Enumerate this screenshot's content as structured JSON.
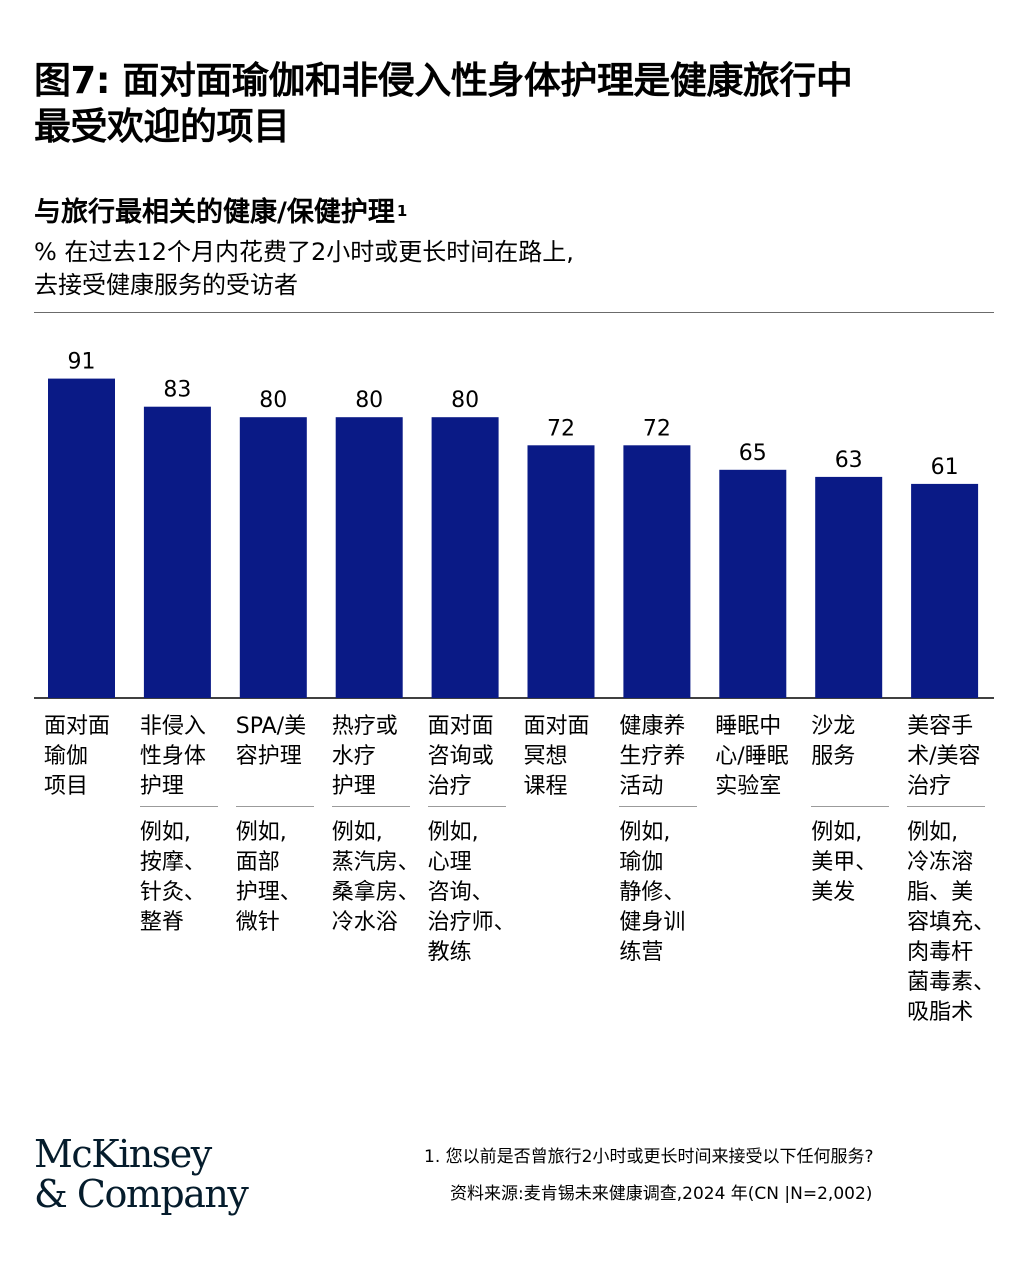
{
  "title": "图7: 面对面瑜伽和非侵入性身体护理是健康旅行中\n最受欢迎的项目",
  "subtitle": "与旅行最相关的健康/保健护理",
  "subtitle_sup": "1",
  "description": "% 在过去12个月内花费了2小时或更长时间在路上,\n去接受健康服务的受访者",
  "colors": {
    "bar": "#0a1a86",
    "axis": "#000000",
    "rule": "#6b6b6b",
    "logo": "#051c2c"
  },
  "chart_data": {
    "type": "bar",
    "categories": [
      "面对面\n瑜伽\n项目",
      "非侵入\n性身体\n护理",
      "SPA/美\n容护理",
      "热疗或\n水疗\n护理",
      "面对面\n咨询或\n治疗",
      "面对面\n冥想\n课程",
      "健康养\n生疗养\n活动",
      "睡眠中\n心/睡眠\n实验室",
      "沙龙\n服务",
      "美容手\n术/美容\n治疗"
    ],
    "values": [
      91,
      83,
      80,
      80,
      80,
      72,
      72,
      65,
      63,
      61
    ],
    "examples": [
      "",
      "例如,\n按摩、\n针灸、\n整脊",
      "例如,\n面部\n护理、\n微针",
      "例如,\n蒸汽房、\n桑拿房、\n冷水浴",
      "例如,\n心理\n咨询、\n治疗师、\n教练",
      "",
      "例如,\n瑜伽\n静修、\n健身训\n练营",
      "",
      "例如,\n美甲、\n美发",
      "例如,\n冷冻溶\n脂、美\n容填充、\n肉毒杆\n菌毒素、\n吸脂术"
    ],
    "ylim": [
      0,
      100
    ],
    "grid": false,
    "legend": "none"
  },
  "footnote": "1.    您以前是否曾旅行2小时或更长时间来接受以下任何服务?",
  "source": "资料来源:麦肯锡未来健康调查,2024 年(CN |N=2,002)",
  "logo_text": "McKinsey\n& Company"
}
